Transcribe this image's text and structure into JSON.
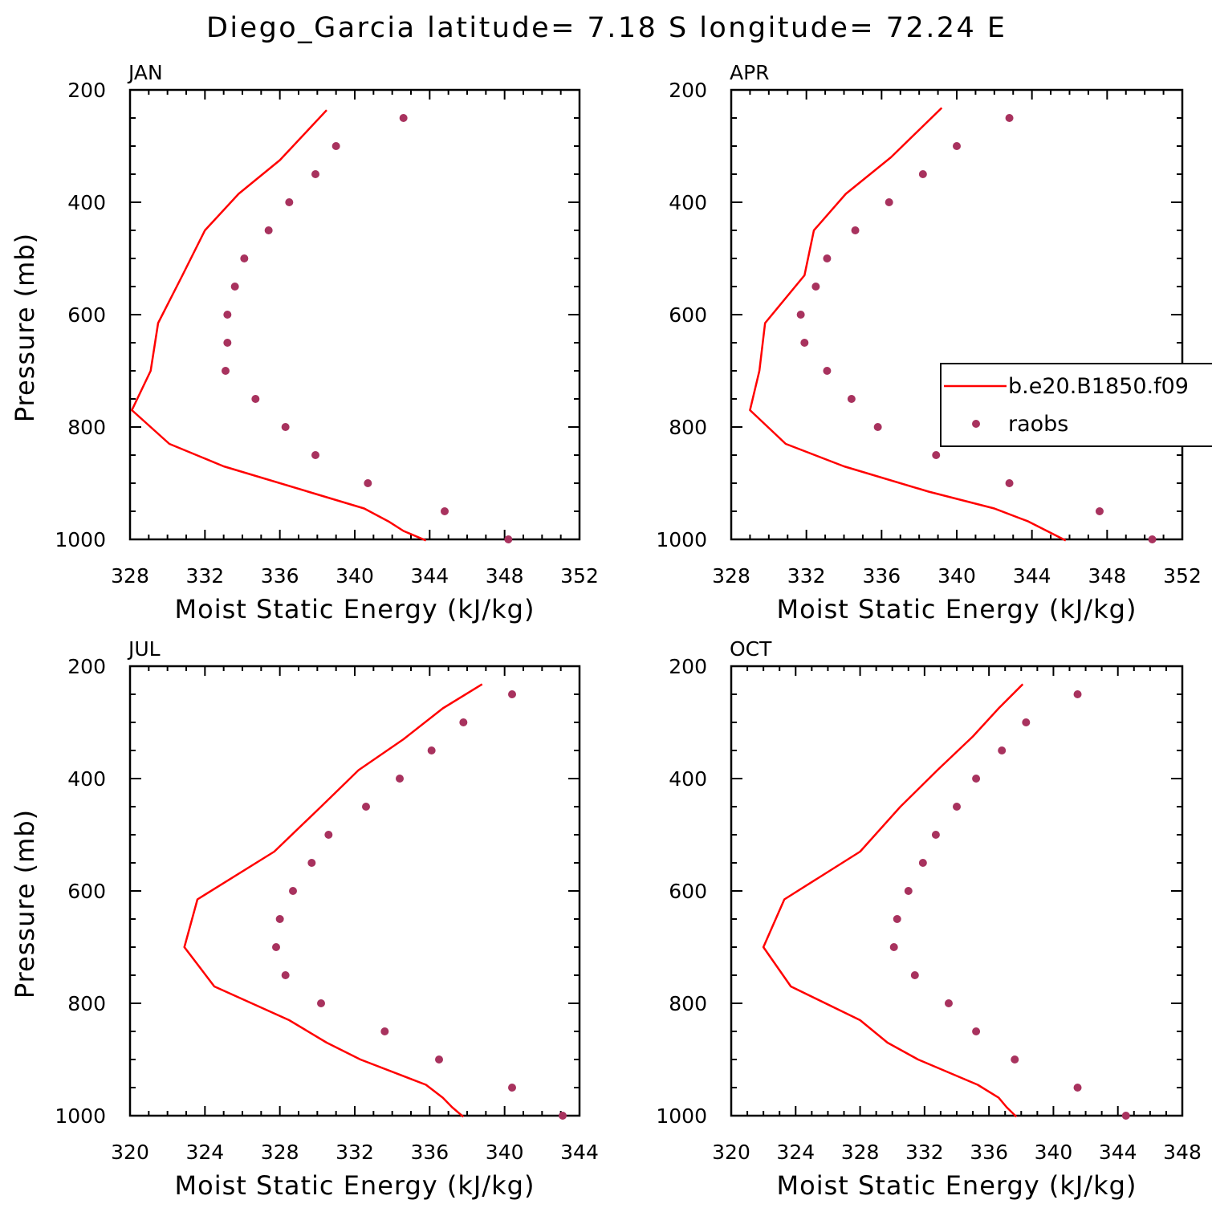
{
  "title": "Diego_Garcia  latitude= 7.18 S longitude= 72.24 E",
  "colors": {
    "model": "#ff0000",
    "obs": "#a8325e",
    "axes": "#000000"
  },
  "legend": {
    "model_label": "b.e20.B1850.f09",
    "obs_label": "raobs"
  },
  "chart_data": [
    {
      "type": "line",
      "panel": "JAN",
      "xlabel": "Moist Static Energy (kJ/kg)",
      "ylabel": "Pressure (mb)",
      "xlim": [
        328,
        352
      ],
      "ylim": [
        1000,
        200
      ],
      "xticks": [
        328,
        332,
        336,
        340,
        344,
        348,
        352
      ],
      "yticks": [
        200,
        400,
        600,
        800,
        1000
      ],
      "grid": false,
      "series": [
        {
          "name": "b.e20.B1850.f09",
          "kind": "line",
          "points": [
            [
              338.5,
              236
            ],
            [
              336,
              325
            ],
            [
              333.8,
              385
            ],
            [
              332,
              450
            ],
            [
              330.8,
              530
            ],
            [
              329.5,
              615
            ],
            [
              329.1,
              700
            ],
            [
              328.1,
              770
            ],
            [
              330.1,
              830
            ],
            [
              333,
              870
            ],
            [
              337.5,
              915
            ],
            [
              340.5,
              945
            ],
            [
              341.8,
              968
            ],
            [
              342.6,
              985
            ],
            [
              343.8,
              1002
            ]
          ]
        },
        {
          "name": "raobs",
          "kind": "scatter",
          "points": [
            [
              342.6,
              250
            ],
            [
              339,
              300
            ],
            [
              337.9,
              350
            ],
            [
              336.5,
              400
            ],
            [
              335.4,
              450
            ],
            [
              334.1,
              500
            ],
            [
              333.6,
              550
            ],
            [
              333.2,
              600
            ],
            [
              333.2,
              650
            ],
            [
              333.1,
              700
            ],
            [
              334.7,
              750
            ],
            [
              336.3,
              800
            ],
            [
              337.9,
              850
            ],
            [
              340.7,
              900
            ],
            [
              344.8,
              950
            ],
            [
              348.2,
              1000
            ]
          ]
        }
      ]
    },
    {
      "type": "line",
      "panel": "APR",
      "xlabel": "Moist Static Energy (kJ/kg)",
      "ylabel": "",
      "xlim": [
        328,
        352
      ],
      "ylim": [
        1000,
        200
      ],
      "xticks": [
        328,
        332,
        336,
        340,
        344,
        348,
        352
      ],
      "yticks": [
        200,
        400,
        600,
        800,
        1000
      ],
      "grid": false,
      "legend_position": "right",
      "series": [
        {
          "name": "b.e20.B1850.f09",
          "kind": "line",
          "points": [
            [
              339.2,
              232
            ],
            [
              336.5,
              320
            ],
            [
              334.1,
              385
            ],
            [
              332.4,
              450
            ],
            [
              331.9,
              530
            ],
            [
              329.8,
              615
            ],
            [
              329.5,
              700
            ],
            [
              329,
              770
            ],
            [
              330.9,
              830
            ],
            [
              334,
              870
            ],
            [
              338.5,
              915
            ],
            [
              342,
              945
            ],
            [
              343.8,
              968
            ],
            [
              344.8,
              985
            ],
            [
              345.8,
              1002
            ]
          ]
        },
        {
          "name": "raobs",
          "kind": "scatter",
          "points": [
            [
              342.8,
              250
            ],
            [
              340,
              300
            ],
            [
              338.2,
              350
            ],
            [
              336.4,
              400
            ],
            [
              334.6,
              450
            ],
            [
              333.1,
              500
            ],
            [
              332.5,
              550
            ],
            [
              331.7,
              600
            ],
            [
              331.9,
              650
            ],
            [
              333.1,
              700
            ],
            [
              334.4,
              750
            ],
            [
              335.8,
              800
            ],
            [
              338.9,
              850
            ],
            [
              342.8,
              900
            ],
            [
              347.6,
              950
            ],
            [
              350.4,
              1000
            ]
          ]
        }
      ]
    },
    {
      "type": "line",
      "panel": "JUL",
      "xlabel": "Moist Static Energy (kJ/kg)",
      "ylabel": "Pressure (mb)",
      "xlim": [
        320,
        344
      ],
      "ylim": [
        1000,
        200
      ],
      "xticks": [
        320,
        324,
        328,
        332,
        336,
        340,
        344
      ],
      "yticks": [
        200,
        400,
        600,
        800,
        1000
      ],
      "grid": false,
      "series": [
        {
          "name": "b.e20.B1850.f09",
          "kind": "line",
          "points": [
            [
              338.8,
              232
            ],
            [
              336.7,
              275
            ],
            [
              334.6,
              330
            ],
            [
              332.2,
              385
            ],
            [
              330.2,
              450
            ],
            [
              327.7,
              530
            ],
            [
              323.6,
              615
            ],
            [
              322.9,
              700
            ],
            [
              324.5,
              770
            ],
            [
              328.5,
              830
            ],
            [
              330.5,
              870
            ],
            [
              332.3,
              900
            ],
            [
              335.8,
              945
            ],
            [
              336.7,
              968
            ],
            [
              337.2,
              985
            ],
            [
              337.8,
              1002
            ]
          ]
        },
        {
          "name": "raobs",
          "kind": "scatter",
          "points": [
            [
              340.4,
              250
            ],
            [
              337.8,
              300
            ],
            [
              336.1,
              350
            ],
            [
              334.4,
              400
            ],
            [
              332.6,
              450
            ],
            [
              330.6,
              500
            ],
            [
              329.7,
              550
            ],
            [
              328.7,
              600
            ],
            [
              328,
              650
            ],
            [
              327.8,
              700
            ],
            [
              328.3,
              750
            ],
            [
              330.2,
              800
            ],
            [
              333.6,
              850
            ],
            [
              336.5,
              900
            ],
            [
              340.4,
              950
            ],
            [
              343.1,
              1000
            ]
          ]
        }
      ]
    },
    {
      "type": "line",
      "panel": "OCT",
      "xlabel": "Moist Static Energy (kJ/kg)",
      "ylabel": "",
      "xlim": [
        320,
        348
      ],
      "ylim": [
        1000,
        200
      ],
      "xticks": [
        320,
        324,
        328,
        332,
        336,
        340,
        344,
        348
      ],
      "yticks": [
        200,
        400,
        600,
        800,
        1000
      ],
      "grid": false,
      "series": [
        {
          "name": "b.e20.B1850.f09",
          "kind": "line",
          "points": [
            [
              338.1,
              232
            ],
            [
              336.6,
              275
            ],
            [
              335,
              325
            ],
            [
              332.8,
              385
            ],
            [
              330.5,
              450
            ],
            [
              328,
              530
            ],
            [
              323.3,
              615
            ],
            [
              322,
              700
            ],
            [
              323.7,
              770
            ],
            [
              328,
              830
            ],
            [
              329.7,
              870
            ],
            [
              331.6,
              900
            ],
            [
              335.3,
              945
            ],
            [
              336.6,
              968
            ],
            [
              337.1,
              985
            ],
            [
              337.7,
              1002
            ]
          ]
        },
        {
          "name": "raobs",
          "kind": "scatter",
          "points": [
            [
              341.5,
              250
            ],
            [
              338.3,
              300
            ],
            [
              336.8,
              350
            ],
            [
              335.2,
              400
            ],
            [
              334,
              450
            ],
            [
              332.7,
              500
            ],
            [
              331.9,
              550
            ],
            [
              331,
              600
            ],
            [
              330.3,
              650
            ],
            [
              330.1,
              700
            ],
            [
              331.4,
              750
            ],
            [
              333.5,
              800
            ],
            [
              335.2,
              850
            ],
            [
              337.6,
              900
            ],
            [
              341.5,
              950
            ],
            [
              344.5,
              1000
            ]
          ]
        }
      ]
    }
  ]
}
